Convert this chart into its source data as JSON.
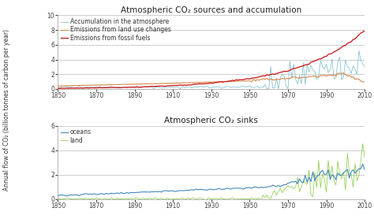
{
  "title1": "Atmospheric CO₂ sources and accumulation",
  "title2": "Atmospheric CO₂ sinks",
  "ylabel": "Annual flow of CO₂ (billion tonnes of carbon per year)",
  "xmin": 1850,
  "xmax": 2010,
  "yticks1": [
    0,
    2,
    4,
    6,
    8,
    10
  ],
  "yticks2": [
    0,
    2,
    4,
    6
  ],
  "xticks": [
    1850,
    1870,
    1890,
    1910,
    1930,
    1950,
    1970,
    1990,
    2010
  ],
  "legend1": [
    "Emissions from fossil fuels",
    "Emissions from land use changes",
    "Accumulation in the atmosphere"
  ],
  "legend2": [
    "oceans",
    "land"
  ],
  "color_fossil": "#cc1111",
  "color_land_use": "#d4884a",
  "color_accum": "#7bbccc",
  "color_oceans": "#4488bb",
  "color_land_sink": "#88cc44",
  "bg_color": "#ffffff",
  "plot_bg": "#ffffff",
  "grid_color": "#bbbbbb",
  "title_fontsize": 7.5,
  "legend_fontsize": 5.5,
  "tick_fontsize": 5.5,
  "ylabel_fontsize": 5.5
}
